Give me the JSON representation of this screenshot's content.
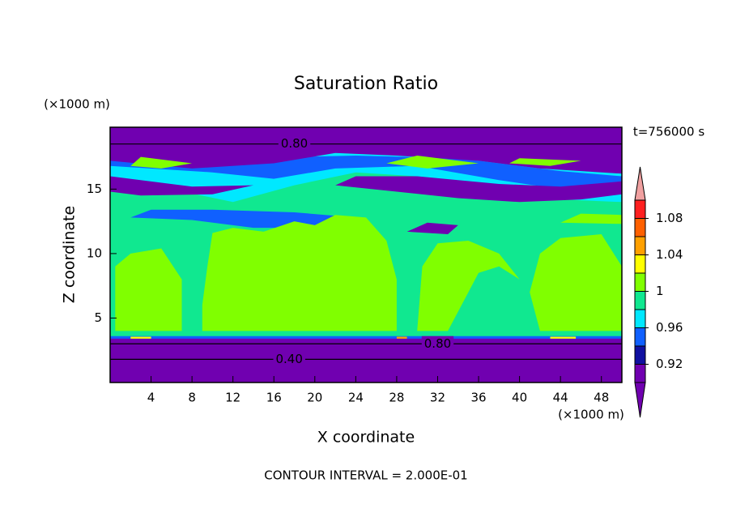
{
  "chart_data": {
    "type": "contour",
    "title": "Saturation Ratio",
    "x_label": "X coordinate",
    "y_label": "Z coordinate",
    "x_unit": "(×1000 m)",
    "y_unit": "(×1000 m)",
    "time_label": "t=756000 s",
    "footer": "CONTOUR INTERVAL = 2.000E-01",
    "contour_labels": [
      "0.80",
      "0.80",
      "0.40"
    ],
    "xlim": [
      0,
      50
    ],
    "xticks": [
      4,
      8,
      12,
      16,
      20,
      24,
      28,
      32,
      36,
      40,
      44,
      48
    ],
    "ylim": [
      0,
      19.8
    ],
    "yticks": [
      5,
      10,
      15
    ],
    "colorbar": {
      "levels": [
        0.9,
        0.92,
        0.94,
        0.96,
        0.98,
        1,
        1.02,
        1.04,
        1.06,
        1.08,
        1.1
      ],
      "colors": [
        "#7000b0",
        "#7000b0",
        "#1010a0",
        "#1060ff",
        "#00e8ff",
        "#10e890",
        "#80ff00",
        "#ffff00",
        "#ffa000",
        "#ff6000",
        "#ff2020",
        "#f0a0a0"
      ],
      "ticks": [
        0.92,
        0.96,
        1,
        1.04,
        1.08
      ]
    }
  }
}
